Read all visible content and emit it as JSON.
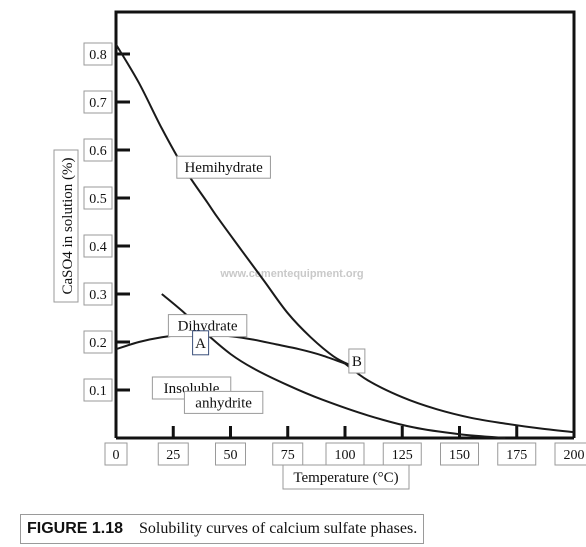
{
  "chart_data": {
    "type": "line",
    "xlabel": "Temperature (°C)",
    "ylabel": "CaSO4 in solution (%)",
    "xlim": [
      0,
      200
    ],
    "ylim": [
      0,
      0.85
    ],
    "xticks": [
      0,
      25,
      50,
      75,
      100,
      125,
      150,
      175,
      200
    ],
    "yticks": [
      0.1,
      0.2,
      0.3,
      0.4,
      0.5,
      0.6,
      0.7,
      0.8
    ],
    "xtick_labels": [
      "0",
      "25",
      "50",
      "75",
      "100",
      "125",
      "150",
      "175",
      "200"
    ],
    "ytick_labels": [
      "0.1",
      "0.2",
      "0.3",
      "0.4",
      "0.5",
      "0.6",
      "0.7",
      "0.8"
    ],
    "grid": false,
    "series": [
      {
        "name": "Hemihydrate",
        "x": [
          0,
          10,
          20,
          30,
          40,
          45,
          55,
          65,
          75,
          85,
          95,
          103
        ],
        "y": [
          0.82,
          0.74,
          0.645,
          0.56,
          0.49,
          0.455,
          0.39,
          0.325,
          0.26,
          0.21,
          0.17,
          0.15
        ]
      },
      {
        "name": "Dihydrate",
        "x": [
          0,
          10,
          20,
          30,
          40,
          50,
          60,
          70,
          80,
          90,
          100,
          103
        ],
        "y": [
          0.185,
          0.2,
          0.21,
          0.215,
          0.215,
          0.212,
          0.205,
          0.195,
          0.185,
          0.172,
          0.155,
          0.15
        ]
      },
      {
        "name": "Insoluble anhydrite",
        "x": [
          20,
          30,
          40,
          50,
          60,
          75,
          90,
          110,
          130,
          150,
          170
        ],
        "y": [
          0.3,
          0.26,
          0.215,
          0.175,
          0.145,
          0.11,
          0.08,
          0.047,
          0.022,
          0.008,
          0.0
        ]
      },
      {
        "name": "",
        "x": [
          100,
          110,
          125,
          140,
          155,
          170,
          185,
          200
        ],
        "y": [
          0.155,
          0.12,
          0.085,
          0.06,
          0.042,
          0.03,
          0.02,
          0.012
        ]
      }
    ],
    "points": [
      {
        "label": "A",
        "x": 40,
        "y": 0.215
      },
      {
        "label": "B",
        "x": 103,
        "y": 0.15
      }
    ],
    "annotations": [
      {
        "text": "Hemihydrate",
        "x": 47,
        "y": 0.56
      },
      {
        "text": "Dihydrate",
        "x": 40,
        "y": 0.23
      },
      {
        "text": "Insoluble",
        "x": 33,
        "y": 0.1
      },
      {
        "text": "anhydrite",
        "x": 47,
        "y": 0.07
      }
    ],
    "watermark": "www.cementequipment.org"
  },
  "caption": {
    "label": "FIGURE 1.18",
    "text": "Solubility curves of calcium sulfate phases."
  }
}
